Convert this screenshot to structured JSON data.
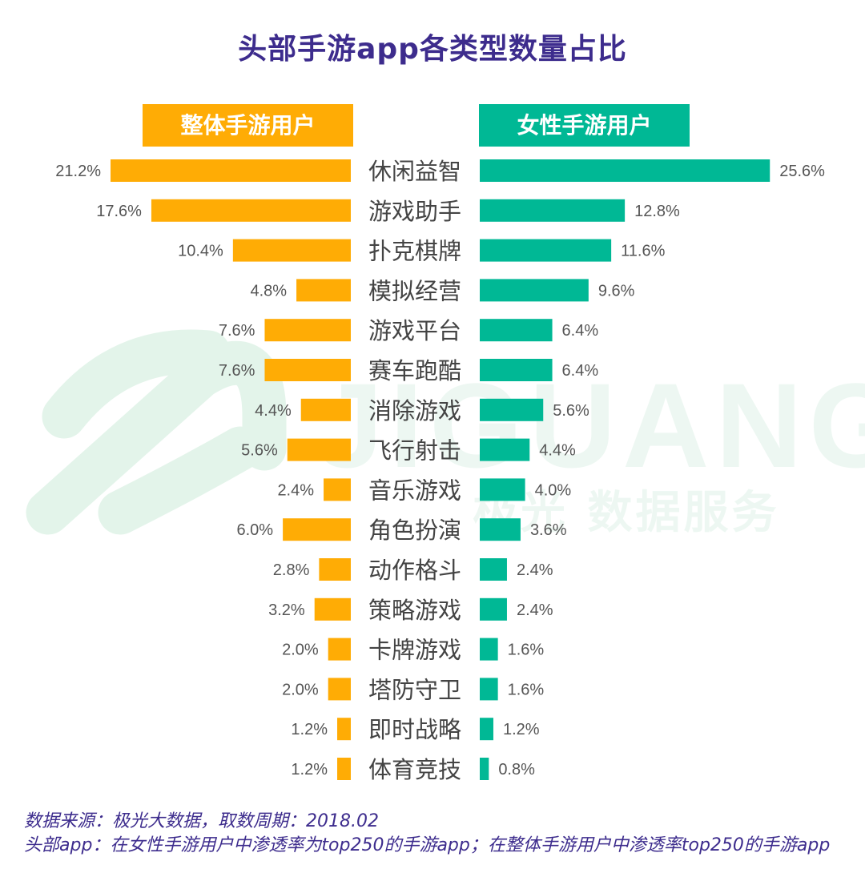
{
  "title": "头部手游app各类型数量占比",
  "colors": {
    "left": "#ffac05",
    "right": "#00b895",
    "title": "#3d2c8d",
    "label": "#444444",
    "value": "#555555",
    "watermark": "#dff2e8"
  },
  "watermark": {
    "brand": "JIGUANG",
    "sub": "极光 数据服务"
  },
  "chart_data": {
    "type": "bar",
    "layout": "butterfly",
    "categories": [
      "休闲益智",
      "游戏助手",
      "扑克棋牌",
      "模拟经营",
      "游戏平台",
      "赛车跑酷",
      "消除游戏",
      "飞行射击",
      "音乐游戏",
      "角色扮演",
      "动作格斗",
      "策略游戏",
      "卡牌游戏",
      "塔防守卫",
      "即时战略",
      "体育竞技"
    ],
    "series": [
      {
        "name": "整体手游用户",
        "values": [
          21.2,
          17.6,
          10.4,
          4.8,
          7.6,
          7.6,
          4.4,
          5.6,
          2.4,
          6.0,
          2.8,
          3.2,
          2.0,
          2.0,
          1.2,
          1.2
        ],
        "labels": [
          "21.2%",
          "17.6%",
          "10.4%",
          "4.8%",
          "7.6%",
          "7.6%",
          "4.4%",
          "5.6%",
          "2.4%",
          "6.0%",
          "2.8%",
          "3.2%",
          "2.0%",
          "2.0%",
          "1.2%",
          "1.2%"
        ]
      },
      {
        "name": "女性手游用户",
        "values": [
          25.6,
          12.8,
          11.6,
          9.6,
          6.4,
          6.4,
          5.6,
          4.4,
          4.0,
          3.6,
          2.4,
          2.4,
          1.6,
          1.6,
          1.2,
          0.8
        ],
        "labels": [
          "25.6%",
          "12.8%",
          "11.6%",
          "9.6%",
          "6.4%",
          "6.4%",
          "5.6%",
          "4.4%",
          "4.0%",
          "3.6%",
          "2.4%",
          "2.4%",
          "1.6%",
          "1.6%",
          "1.2%",
          "0.8%"
        ]
      }
    ],
    "unit": "%"
  },
  "footer": {
    "line1": "数据来源：极光大数据，取数周期：2018.02",
    "line2": "头部app：在女性手游用户中渗透率为top250的手游app；在整体手游用户中渗透率top250的手游app"
  }
}
